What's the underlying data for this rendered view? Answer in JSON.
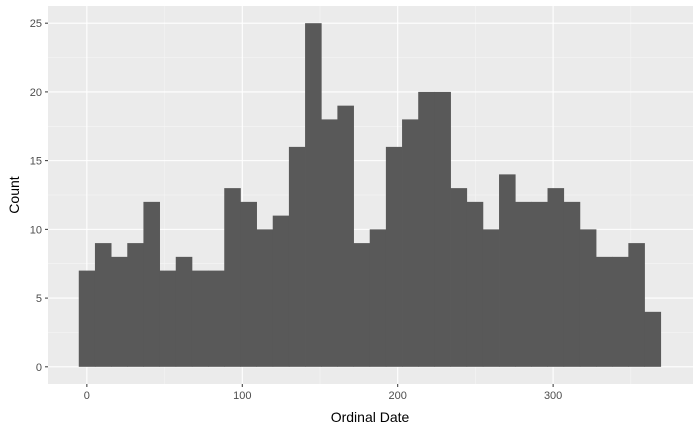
{
  "chart_data": {
    "type": "bar",
    "subtype": "histogram",
    "xlabel": "Ordinal Date",
    "ylabel": "Count",
    "xlim": [
      -25,
      390
    ],
    "ylim": [
      -1.25,
      26.25
    ],
    "x_ticks": [
      0,
      100,
      200,
      300
    ],
    "y_ticks": [
      0,
      5,
      10,
      15,
      20,
      25
    ],
    "bin_width": 10.4,
    "bin_start": -5.2,
    "values": [
      7,
      9,
      8,
      9,
      12,
      7,
      8,
      7,
      7,
      13,
      12,
      10,
      11,
      16,
      25,
      18,
      19,
      9,
      10,
      16,
      18,
      20,
      20,
      13,
      12,
      10,
      14,
      12,
      12,
      13,
      12,
      10,
      8,
      8,
      9,
      4
    ],
    "grid": true,
    "bar_color": "#595959",
    "panel_color": "#ebebeb"
  }
}
